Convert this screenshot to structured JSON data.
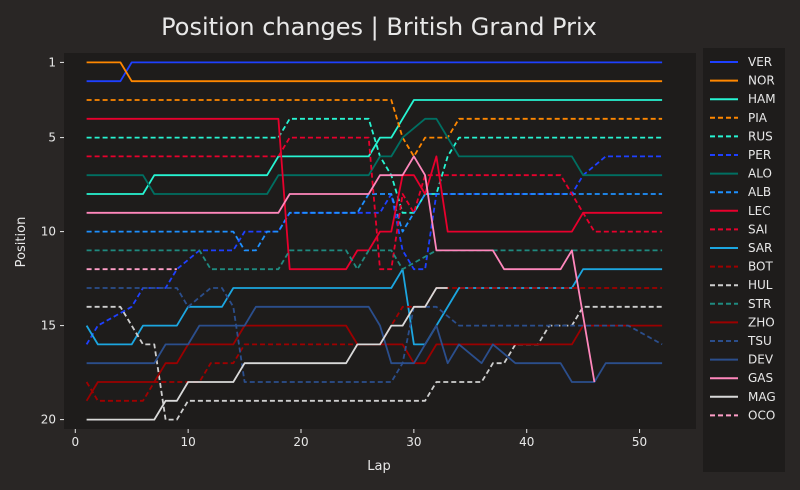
{
  "chart_data": {
    "type": "line",
    "title": "Position changes | British Grand Prix",
    "xlabel": "Lap",
    "ylabel": "Position",
    "xlim": [
      -1,
      55
    ],
    "ylim": [
      20.5,
      0.5
    ],
    "x_ticks": [
      0,
      10,
      20,
      30,
      40,
      50
    ],
    "y_ticks": [
      1,
      5,
      10,
      15,
      20
    ],
    "y_inverted": true,
    "grid": false,
    "legend_position": "right",
    "colors": {
      "background": "#292625",
      "plot_background": "#1e1c1b",
      "text": "#e8e8e8"
    },
    "series": [
      {
        "name": "VER",
        "color": "#1e40ff",
        "dash": "solid",
        "points": [
          [
            1,
            2
          ],
          [
            4,
            2
          ],
          [
            5,
            1
          ],
          [
            52,
            1
          ]
        ]
      },
      {
        "name": "NOR",
        "color": "#ff8700",
        "dash": "solid",
        "points": [
          [
            1,
            1
          ],
          [
            4,
            1
          ],
          [
            5,
            2
          ],
          [
            52,
            2
          ]
        ]
      },
      {
        "name": "HAM",
        "color": "#27f4d2",
        "dash": "solid",
        "points": [
          [
            1,
            8
          ],
          [
            6,
            8
          ],
          [
            7,
            7
          ],
          [
            17,
            7
          ],
          [
            18,
            6
          ],
          [
            26,
            6
          ],
          [
            27,
            5
          ],
          [
            28,
            5
          ],
          [
            29,
            4
          ],
          [
            30,
            3
          ],
          [
            52,
            3
          ]
        ]
      },
      {
        "name": "PIA",
        "color": "#ff8700",
        "dash": "dashed",
        "points": [
          [
            1,
            3
          ],
          [
            28,
            3
          ],
          [
            29,
            5
          ],
          [
            30,
            6
          ],
          [
            31,
            5
          ],
          [
            33,
            5
          ],
          [
            34,
            4
          ],
          [
            52,
            4
          ]
        ]
      },
      {
        "name": "RUS",
        "color": "#27f4d2",
        "dash": "dashed",
        "points": [
          [
            1,
            5
          ],
          [
            18,
            5
          ],
          [
            19,
            4
          ],
          [
            26,
            4
          ],
          [
            27,
            6
          ],
          [
            28,
            7
          ],
          [
            29,
            9
          ],
          [
            30,
            9
          ],
          [
            31,
            8
          ],
          [
            32,
            8
          ],
          [
            33,
            6
          ],
          [
            34,
            5
          ],
          [
            52,
            5
          ]
        ]
      },
      {
        "name": "PER",
        "color": "#1e40ff",
        "dash": "dashed",
        "points": [
          [
            1,
            16
          ],
          [
            2,
            15
          ],
          [
            5,
            14
          ],
          [
            6,
            13
          ],
          [
            8,
            13
          ],
          [
            9,
            12
          ],
          [
            11,
            11
          ],
          [
            14,
            11
          ],
          [
            15,
            10
          ],
          [
            18,
            10
          ],
          [
            19,
            9
          ],
          [
            27,
            9
          ],
          [
            28,
            8
          ],
          [
            29,
            11
          ],
          [
            30,
            12
          ],
          [
            31,
            12
          ],
          [
            32,
            8
          ],
          [
            44,
            8
          ],
          [
            45,
            7
          ],
          [
            47,
            6
          ],
          [
            52,
            6
          ]
        ]
      },
      {
        "name": "ALO",
        "color": "#006f62",
        "dash": "solid",
        "points": [
          [
            1,
            7
          ],
          [
            6,
            7
          ],
          [
            7,
            8
          ],
          [
            17,
            8
          ],
          [
            18,
            7
          ],
          [
            26,
            7
          ],
          [
            27,
            6
          ],
          [
            28,
            6
          ],
          [
            29,
            5
          ],
          [
            31,
            4
          ],
          [
            32,
            4
          ],
          [
            33,
            5
          ],
          [
            34,
            6
          ],
          [
            44,
            6
          ],
          [
            45,
            7
          ],
          [
            52,
            7
          ]
        ]
      },
      {
        "name": "ALB",
        "color": "#1e90ff",
        "dash": "dashed",
        "points": [
          [
            1,
            10
          ],
          [
            14,
            10
          ],
          [
            15,
            11
          ],
          [
            16,
            11
          ],
          [
            17,
            10
          ],
          [
            18,
            10
          ],
          [
            19,
            9
          ],
          [
            25,
            9
          ],
          [
            26,
            8
          ],
          [
            28,
            8
          ],
          [
            29,
            10
          ],
          [
            30,
            9
          ],
          [
            31,
            8
          ],
          [
            44,
            8
          ],
          [
            45,
            8
          ],
          [
            52,
            8
          ]
        ]
      },
      {
        "name": "LEC",
        "color": "#e8002d",
        "dash": "solid",
        "points": [
          [
            1,
            4
          ],
          [
            18,
            4
          ],
          [
            19,
            12
          ],
          [
            24,
            12
          ],
          [
            25,
            11
          ],
          [
            26,
            11
          ],
          [
            27,
            10
          ],
          [
            28,
            10
          ],
          [
            29,
            7
          ],
          [
            30,
            7
          ],
          [
            31,
            8
          ],
          [
            32,
            6
          ],
          [
            33,
            10
          ],
          [
            44,
            10
          ],
          [
            45,
            9
          ],
          [
            52,
            9
          ]
        ]
      },
      {
        "name": "SAI",
        "color": "#e8002d",
        "dash": "dashed",
        "points": [
          [
            1,
            6
          ],
          [
            18,
            6
          ],
          [
            19,
            5
          ],
          [
            26,
            5
          ],
          [
            27,
            12
          ],
          [
            28,
            12
          ],
          [
            29,
            8
          ],
          [
            30,
            9
          ],
          [
            31,
            7
          ],
          [
            43,
            7
          ],
          [
            44,
            8
          ],
          [
            45,
            9
          ],
          [
            46,
            10
          ],
          [
            52,
            10
          ]
        ]
      },
      {
        "name": "SAR",
        "color": "#1ca6e0",
        "dash": "solid",
        "points": [
          [
            1,
            15
          ],
          [
            2,
            16
          ],
          [
            5,
            16
          ],
          [
            6,
            15
          ],
          [
            9,
            15
          ],
          [
            10,
            14
          ],
          [
            13,
            14
          ],
          [
            14,
            13
          ],
          [
            28,
            13
          ],
          [
            29,
            12
          ],
          [
            30,
            16
          ],
          [
            31,
            16
          ],
          [
            32,
            15
          ],
          [
            34,
            13
          ],
          [
            44,
            13
          ],
          [
            45,
            12
          ],
          [
            52,
            12
          ]
        ]
      },
      {
        "name": "BOT",
        "color": "#a00000",
        "dash": "dashed",
        "points": [
          [
            1,
            18
          ],
          [
            2,
            19
          ],
          [
            6,
            19
          ],
          [
            7,
            18
          ],
          [
            11,
            18
          ],
          [
            12,
            17
          ],
          [
            14,
            17
          ],
          [
            15,
            16
          ],
          [
            27,
            16
          ],
          [
            28,
            15
          ],
          [
            29,
            14
          ],
          [
            31,
            14
          ],
          [
            32,
            13
          ],
          [
            52,
            13
          ]
        ]
      },
      {
        "name": "HUL",
        "color": "#cfcfcf",
        "dash": "dashed",
        "points": [
          [
            1,
            14
          ],
          [
            4,
            14
          ],
          [
            5,
            15
          ],
          [
            6,
            16
          ],
          [
            7,
            16
          ],
          [
            8,
            20
          ],
          [
            9,
            20
          ],
          [
            10,
            19
          ],
          [
            30,
            19
          ],
          [
            31,
            19
          ],
          [
            32,
            18
          ],
          [
            36,
            18
          ],
          [
            37,
            17
          ],
          [
            38,
            17
          ],
          [
            39,
            16
          ],
          [
            41,
            16
          ],
          [
            42,
            15
          ],
          [
            44,
            15
          ],
          [
            45,
            14
          ],
          [
            52,
            14
          ]
        ]
      },
      {
        "name": "STR",
        "color": "#1f8a80",
        "dash": "dashed",
        "points": [
          [
            1,
            11
          ],
          [
            11,
            11
          ],
          [
            12,
            12
          ],
          [
            18,
            12
          ],
          [
            19,
            11
          ],
          [
            24,
            11
          ],
          [
            25,
            12
          ],
          [
            26,
            11
          ],
          [
            28,
            11
          ],
          [
            29,
            12
          ],
          [
            32,
            11
          ],
          [
            33,
            11
          ],
          [
            34,
            11
          ],
          [
            52,
            11
          ]
        ]
      },
      {
        "name": "ZHO",
        "color": "#9b0000",
        "dash": "solid",
        "points": [
          [
            1,
            19
          ],
          [
            2,
            18
          ],
          [
            7,
            18
          ],
          [
            8,
            17
          ],
          [
            9,
            17
          ],
          [
            10,
            16
          ],
          [
            14,
            16
          ],
          [
            15,
            15
          ],
          [
            24,
            15
          ],
          [
            25,
            16
          ],
          [
            29,
            16
          ],
          [
            30,
            17
          ],
          [
            31,
            17
          ],
          [
            32,
            16
          ],
          [
            44,
            16
          ],
          [
            45,
            15
          ],
          [
            52,
            15
          ]
        ]
      },
      {
        "name": "TSU",
        "color": "#2b4e8c",
        "dash": "dashed",
        "points": [
          [
            1,
            13
          ],
          [
            9,
            13
          ],
          [
            10,
            14
          ],
          [
            12,
            13
          ],
          [
            13,
            13
          ],
          [
            14,
            14
          ],
          [
            15,
            18
          ],
          [
            28,
            18
          ],
          [
            29,
            17
          ],
          [
            30,
            14
          ],
          [
            31,
            14
          ],
          [
            32,
            14
          ],
          [
            34,
            15
          ],
          [
            44,
            15
          ],
          [
            45,
            15
          ],
          [
            48,
            15
          ],
          [
            49,
            15
          ],
          [
            52,
            16
          ]
        ]
      },
      {
        "name": "DEV",
        "color": "#2b4e8c",
        "dash": "solid",
        "points": [
          [
            1,
            17
          ],
          [
            7,
            17
          ],
          [
            8,
            16
          ],
          [
            10,
            16
          ],
          [
            11,
            15
          ],
          [
            15,
            15
          ],
          [
            16,
            14
          ],
          [
            26,
            14
          ],
          [
            27,
            15
          ],
          [
            28,
            17
          ],
          [
            29,
            17
          ],
          [
            30,
            17
          ],
          [
            31,
            16
          ],
          [
            32,
            15
          ],
          [
            33,
            17
          ],
          [
            34,
            16
          ],
          [
            36,
            17
          ],
          [
            37,
            16
          ],
          [
            39,
            17
          ],
          [
            43,
            17
          ],
          [
            44,
            18
          ],
          [
            46,
            18
          ],
          [
            47,
            17
          ],
          [
            52,
            17
          ]
        ]
      },
      {
        "name": "GAS",
        "color": "#ff87bc",
        "dash": "solid",
        "points": [
          [
            1,
            9
          ],
          [
            18,
            9
          ],
          [
            19,
            8
          ],
          [
            25,
            8
          ],
          [
            26,
            8
          ],
          [
            27,
            7
          ],
          [
            29,
            7
          ],
          [
            30,
            6
          ],
          [
            31,
            7
          ],
          [
            32,
            11
          ],
          [
            37,
            11
          ],
          [
            38,
            12
          ],
          [
            43,
            12
          ],
          [
            44,
            11
          ],
          [
            46,
            18
          ]
        ]
      },
      {
        "name": "MAG",
        "color": "#d9d9d9",
        "dash": "solid",
        "points": [
          [
            1,
            20
          ],
          [
            7,
            20
          ],
          [
            8,
            19
          ],
          [
            9,
            19
          ],
          [
            10,
            18
          ],
          [
            14,
            18
          ],
          [
            15,
            17
          ],
          [
            24,
            17
          ],
          [
            25,
            16
          ],
          [
            27,
            16
          ],
          [
            28,
            15
          ],
          [
            29,
            15
          ],
          [
            30,
            14
          ],
          [
            31,
            14
          ],
          [
            32,
            13
          ],
          [
            33,
            13
          ]
        ]
      },
      {
        "name": "OCO",
        "color": "#ff9ec8",
        "dash": "dashed",
        "points": [
          [
            1,
            12
          ],
          [
            9,
            12
          ]
        ]
      }
    ]
  }
}
